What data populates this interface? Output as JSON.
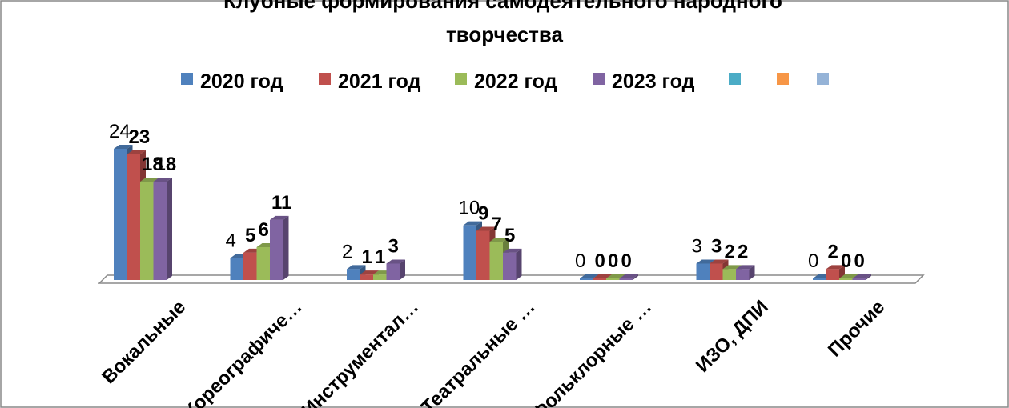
{
  "chart_data": {
    "type": "bar",
    "title_line1": "Клубные формирования самодеятельного народного",
    "title_line2": "творчества",
    "categories": [
      "Вокальные",
      "Хореографиче…",
      "Инструментал…",
      "Театральные …",
      "Фольклорные …",
      "ИЗО, ДПИ",
      "Прочие"
    ],
    "series": [
      {
        "name": "2020 год",
        "values": [
          24,
          4,
          2,
          10,
          0,
          3,
          0
        ],
        "color": "#4F81BD"
      },
      {
        "name": "2021 год",
        "values": [
          23,
          5,
          1,
          9,
          0,
          3,
          2
        ],
        "color": "#C0504D"
      },
      {
        "name": "2022 год",
        "values": [
          18,
          6,
          1,
          7,
          0,
          2,
          0
        ],
        "color": "#9BBB59"
      },
      {
        "name": "2023 год",
        "values": [
          18,
          11,
          3,
          5,
          0,
          2,
          0
        ],
        "color": "#8064A2"
      }
    ],
    "legend_extra_colors": [
      "#4BACC6",
      "#F79646",
      "#95B3D7"
    ],
    "ylim": [
      0,
      24
    ],
    "legend_position": "top",
    "grid": false,
    "three_d": true
  }
}
